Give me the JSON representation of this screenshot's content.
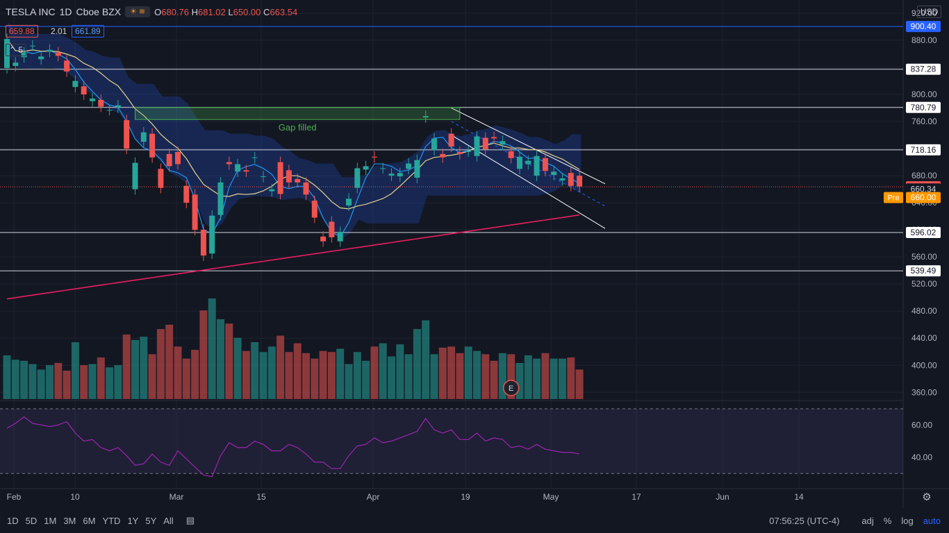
{
  "header": {
    "symbol": "TESLA INC",
    "interval": "1D",
    "exchange": "Cboe BZX",
    "ohlc": {
      "o_label": "O",
      "o": "680.76",
      "h_label": "H",
      "h": "681.02",
      "l_label": "L",
      "l": "650.00",
      "c_label": "C",
      "c": "663.54"
    },
    "bid": "659.88",
    "spread": "2.01",
    "ask": "661.89",
    "indicators_count": "5",
    "currency": "USD"
  },
  "price_axis": {
    "ticks": [
      "920.00",
      "880.00",
      "840.00",
      "800.00",
      "760.00",
      "720.00",
      "680.00",
      "640.00",
      "600.00",
      "560.00",
      "520.00",
      "480.00",
      "440.00",
      "400.00",
      "360.00"
    ],
    "levels": [
      {
        "label": "900.40",
        "style": "blue"
      },
      {
        "label": "837.28",
        "style": "white"
      },
      {
        "label": "780.79",
        "style": "white"
      },
      {
        "label": "718.16",
        "style": "white"
      },
      {
        "label": "663.54",
        "style": "red"
      },
      {
        "label": "660.34",
        "style": "plain"
      },
      {
        "label": "596.02",
        "style": "white"
      },
      {
        "label": "539.49",
        "style": "white"
      }
    ],
    "pre_label": "Pre",
    "pre_price": "660.00"
  },
  "rsi_axis": {
    "ticks": [
      "60.00",
      "40.00"
    ]
  },
  "time_axis": {
    "ticks": [
      "Feb",
      "10",
      "Mar",
      "15",
      "Apr",
      "19",
      "May",
      "17",
      "Jun",
      "14"
    ]
  },
  "annotation": {
    "gap_filled": "Gap filled",
    "earnings_marker": "E"
  },
  "bottom_bar": {
    "timeframes": [
      "1D",
      "5D",
      "1M",
      "3M",
      "6M",
      "YTD",
      "1Y",
      "5Y",
      "All"
    ],
    "clock": "07:56:25 (UTC-4)",
    "adj": "adj",
    "percent": "%",
    "log": "log",
    "auto": "auto"
  },
  "colors": {
    "up": "#26a69a",
    "down": "#ef5350",
    "cloud": "#2962ff",
    "sma200": "#e91e63",
    "rsi": "#9c27b0"
  },
  "chart_data": {
    "type": "candlestick",
    "title": "TESLA INC",
    "ylim": [
      340,
      930
    ],
    "x": [
      "2021-02-01",
      "2021-02-02",
      "2021-02-03",
      "2021-02-04",
      "2021-02-05",
      "2021-02-08",
      "2021-02-09",
      "2021-02-10",
      "2021-02-11",
      "2021-02-12",
      "2021-02-16",
      "2021-02-17",
      "2021-02-18",
      "2021-02-19",
      "2021-02-22",
      "2021-02-23",
      "2021-02-24",
      "2021-02-25",
      "2021-02-26",
      "2021-03-01",
      "2021-03-02",
      "2021-03-03",
      "2021-03-04",
      "2021-03-05",
      "2021-03-08",
      "2021-03-09",
      "2021-03-10",
      "2021-03-11",
      "2021-03-12",
      "2021-03-15",
      "2021-03-16",
      "2021-03-17",
      "2021-03-18",
      "2021-03-19",
      "2021-03-22",
      "2021-03-23",
      "2021-03-24",
      "2021-03-25",
      "2021-03-26",
      "2021-03-29",
      "2021-03-30",
      "2021-03-31",
      "2021-04-01",
      "2021-04-05",
      "2021-04-06",
      "2021-04-07",
      "2021-04-08",
      "2021-04-09",
      "2021-04-12",
      "2021-04-13",
      "2021-04-14",
      "2021-04-15",
      "2021-04-16",
      "2021-04-19",
      "2021-04-20",
      "2021-04-21",
      "2021-04-22",
      "2021-04-23",
      "2021-04-26",
      "2021-04-27",
      "2021-04-28",
      "2021-04-29",
      "2021-04-30",
      "2021-05-03",
      "2021-05-04",
      "2021-05-05",
      "2021-05-06",
      "2021-05-07"
    ],
    "series": [
      {
        "name": "price",
        "open": [
          839,
          842,
          855,
          872,
          852,
          863,
          862,
          850,
          811,
          812,
          790,
          792,
          777,
          781,
          762,
          660,
          730,
          742,
          690,
          712,
          715,
          665,
          652,
          600,
          565,
          622,
          700,
          686,
          688,
          706,
          678,
          657,
          700,
          688,
          675,
          670,
          643,
          590,
          612,
          583,
          636,
          662,
          689,
          708,
          691,
          680,
          679,
          690,
          677,
          766,
          718,
          712,
          742,
          715,
          716,
          709,
          736,
          737,
          726,
          716,
          690,
          697,
          680,
          706,
          681,
          673,
          684,
          680
        ],
        "close": [
          882,
          847,
          862,
          872,
          856,
          866,
          857,
          834,
          820,
          800,
          794,
          782,
          777,
          784,
          720,
          699,
          744,
          707,
          662,
          694,
          697,
          640,
          600,
          562,
          621,
          670,
          697,
          697,
          686,
          707,
          679,
          660,
          653,
          670,
          670,
          652,
          618,
          583,
          589,
          597,
          646,
          691,
          694,
          707,
          691,
          683,
          684,
          698,
          703,
          768,
          735,
          707,
          723,
          712,
          716,
          738,
          719,
          735,
          731,
          706,
          708,
          702,
          709,
          687,
          686,
          676,
          665,
          664
        ]
      }
    ],
    "volume": [
      40,
      36,
      35,
      32,
      27,
      31,
      33,
      26,
      52,
      31,
      32,
      38,
      29,
      31,
      59,
      54,
      57,
      41,
      64,
      68,
      48,
      37,
      45,
      81,
      92,
      73,
      69,
      56,
      44,
      52,
      43,
      48,
      58,
      43,
      51,
      42,
      37,
      44,
      43,
      46,
      32,
      43,
      35,
      48,
      51,
      39,
      50,
      41,
      64,
      72,
      41,
      47,
      48,
      42,
      48,
      44,
      41,
      35,
      42,
      41,
      33,
      40,
      37,
      42,
      37,
      37,
      38,
      27
    ],
    "ylabel": "",
    "volume_label": "",
    "rsi": [
      58,
      61,
      65,
      61,
      60,
      59,
      60,
      62,
      55,
      50,
      51,
      46,
      44,
      46,
      41,
      35,
      36,
      42,
      37,
      35,
      44,
      39,
      34,
      29,
      28,
      41,
      49,
      46,
      46,
      50,
      48,
      44,
      44,
      48,
      46,
      42,
      37,
      37,
      33,
      33,
      41,
      47,
      48,
      52,
      49,
      50,
      52,
      54,
      56,
      64,
      57,
      55,
      57,
      51,
      51,
      55,
      50,
      52,
      51,
      46,
      47,
      45,
      48,
      45,
      44,
      43,
      43,
      42
    ]
  }
}
